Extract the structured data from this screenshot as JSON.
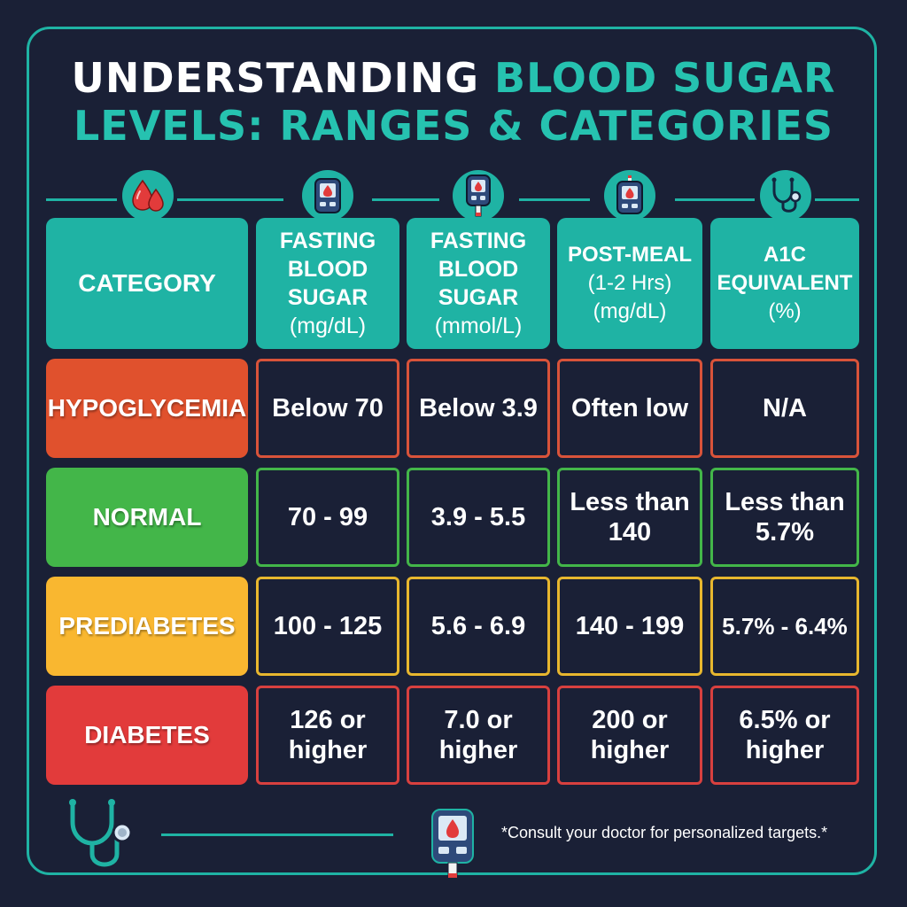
{
  "title": {
    "line1_white": "UNDERSTANDING",
    "line1_teal": "BLOOD SUGAR",
    "line2": "LEVELS: RANGES & CATEGORIES"
  },
  "columns": [
    {
      "lines": [
        "CATEGORY"
      ],
      "icon": "blood-drops-icon"
    },
    {
      "lines": [
        "FASTING",
        "BLOOD",
        "SUGAR",
        "(mg/dL)"
      ],
      "icon": "glucose-meter-icon"
    },
    {
      "lines": [
        "FASTING",
        "BLOOD",
        "SUGAR",
        "(mmol/L)"
      ],
      "icon": "glucose-meter-strip-icon"
    },
    {
      "lines": [
        "POST-MEAL",
        "(1-2 Hrs)",
        "(mg/dL)"
      ],
      "icon": "glucose-meter-icon"
    },
    {
      "lines": [
        "A1C",
        "EQUIVALENT",
        "(%)"
      ],
      "icon": "stethoscope-icon"
    }
  ],
  "rows": [
    {
      "category": "HYPOGLYCEMIA",
      "color": "#e0512d",
      "border": "#d9533a",
      "values": [
        [
          "Below 70"
        ],
        [
          "Below 3.9"
        ],
        [
          "Often low"
        ],
        [
          "N/A"
        ]
      ]
    },
    {
      "category": "NORMAL",
      "color": "#43b649",
      "border": "#43b649",
      "values": [
        [
          "70 - 99"
        ],
        [
          "3.9 - 5.5"
        ],
        [
          "Less than",
          "140"
        ],
        [
          "Less than",
          "5.7%"
        ]
      ]
    },
    {
      "category": "PREDIABETES",
      "color": "#f9b730",
      "border": "#e8b72e",
      "values": [
        [
          "100 - 125"
        ],
        [
          "5.6 - 6.9"
        ],
        [
          "140 - 199"
        ],
        [
          "5.7% - 6.4%"
        ]
      ]
    },
    {
      "category": "DIABETES",
      "color": "#e23b3b",
      "border": "#d8403f",
      "values": [
        [
          "126 or",
          "higher"
        ],
        [
          "7.0 or",
          "higher"
        ],
        [
          "200 or",
          "higher"
        ],
        [
          "6.5% or",
          "higher"
        ]
      ]
    }
  ],
  "footer": {
    "note": "*Consult your doctor for personalized targets.*",
    "left_icon": "stethoscope-icon",
    "center_icon": "glucose-meter-icon"
  },
  "colors": {
    "background": "#1a2036",
    "accent": "#1fb3a4",
    "title_teal": "#26c2b0"
  }
}
